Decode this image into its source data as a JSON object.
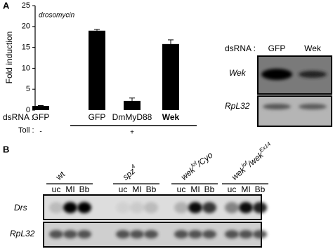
{
  "panel_labels": [
    "A",
    "B"
  ],
  "chart_data": {
    "type": "bar",
    "title": "drosomycin",
    "y_label": "Fold induction",
    "categories": [
      "GFP",
      "GFP",
      "DmMyD88",
      "Wek"
    ],
    "values": [
      1.0,
      19.0,
      2.2,
      15.8
    ],
    "errors": [
      0.1,
      0.3,
      0.7,
      1.0
    ],
    "color": "#000000",
    "ylim": [
      0,
      25
    ],
    "yticks": [
      0,
      5,
      10,
      15,
      20,
      25
    ]
  },
  "row_labels": {
    "dsrna": "dsRNA :",
    "toll": "Toll :"
  },
  "toll": [
    "-",
    "+"
  ],
  "blot_a": {
    "header": "dsRNA :",
    "lanes": [
      "GFP",
      "Wek"
    ],
    "rows": [
      "Wek",
      "RpL32"
    ]
  },
  "blot_b": {
    "groups": [
      {
        "base": "wt"
      },
      {
        "base": "spz",
        "sup": "4"
      },
      {
        "base": "wek",
        "sup": "lof",
        "rest": "/Cyo"
      },
      {
        "base": "wek",
        "sup": "lof",
        "rest": "/wek",
        "sup2": "Ex14"
      }
    ],
    "lanes": [
      "uc",
      "MI",
      "Bb"
    ],
    "rows": [
      "Drs",
      "RpL32"
    ]
  }
}
